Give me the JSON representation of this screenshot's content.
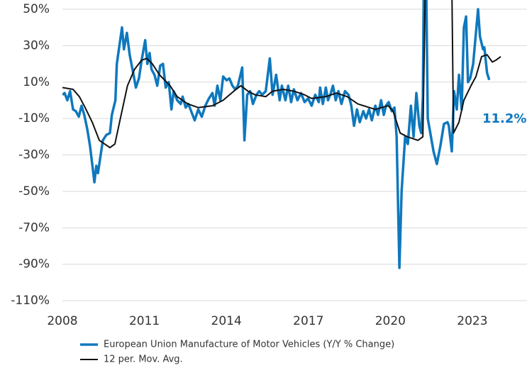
{
  "chart_data": {
    "type": "line",
    "annotation": "11.2%",
    "xlim": [
      2008,
      2025
    ],
    "xticks": [
      2008,
      2011,
      2014,
      2017,
      2020,
      2023
    ],
    "ylim": [
      -110,
      50
    ],
    "yticks": [
      {
        "value": 50,
        "label": "50%"
      },
      {
        "value": 30,
        "label": "30%"
      },
      {
        "value": 10,
        "label": "10%"
      },
      {
        "value": -10,
        "label": "-10%"
      },
      {
        "value": -30,
        "label": "-30%"
      },
      {
        "value": -50,
        "label": "-50%"
      },
      {
        "value": -70,
        "label": "-70%"
      },
      {
        "value": -90,
        "label": "-90%"
      },
      {
        "value": -110,
        "label": "-110%"
      }
    ],
    "grid": true,
    "series": [
      {
        "name": "European Union Manufacture of Motor Vehicles (Y/Y % Change)",
        "color": "#0f78bd",
        "width": 3.5,
        "x": [
          2008.0,
          2008.08,
          2008.18,
          2008.28,
          2008.39,
          2008.49,
          2008.6,
          2008.7,
          2008.8,
          2008.91,
          2009.01,
          2009.09,
          2009.17,
          2009.24,
          2009.3,
          2009.48,
          2009.61,
          2009.74,
          2009.81,
          2009.94,
          2009.99,
          2010.18,
          2010.25,
          2010.36,
          2010.46,
          2010.59,
          2010.69,
          2010.8,
          2010.9,
          2011.03,
          2011.11,
          2011.19,
          2011.26,
          2011.37,
          2011.47,
          2011.58,
          2011.68,
          2011.78,
          2011.89,
          2011.99,
          2012.07,
          2012.2,
          2012.33,
          2012.4,
          2012.51,
          2012.61,
          2012.84,
          2012.97,
          2013.1,
          2013.23,
          2013.36,
          2013.49,
          2013.57,
          2013.67,
          2013.78,
          2013.88,
          2014.01,
          2014.11,
          2014.22,
          2014.32,
          2014.42,
          2014.58,
          2014.66,
          2014.76,
          2014.87,
          2014.97,
          2015.1,
          2015.2,
          2015.31,
          2015.44,
          2015.59,
          2015.69,
          2015.82,
          2015.95,
          2016.03,
          2016.16,
          2016.26,
          2016.37,
          2016.47,
          2016.6,
          2016.73,
          2016.86,
          2016.99,
          2017.12,
          2017.25,
          2017.38,
          2017.43,
          2017.53,
          2017.64,
          2017.72,
          2017.82,
          2017.9,
          2018.0,
          2018.1,
          2018.21,
          2018.34,
          2018.47,
          2018.57,
          2018.67,
          2018.78,
          2018.88,
          2019.01,
          2019.11,
          2019.22,
          2019.32,
          2019.45,
          2019.55,
          2019.66,
          2019.76,
          2019.84,
          2019.94,
          2020.05,
          2020.15,
          2020.23,
          2020.33,
          2020.41,
          2020.54,
          2020.64,
          2020.75,
          2020.85,
          2020.95,
          2021.06,
          2021.13,
          2021.19,
          2021.26,
          2021.37,
          2021.58,
          2021.7,
          2021.83,
          2021.96,
          2022.09,
          2022.14,
          2022.25,
          2022.33,
          2022.43,
          2022.51,
          2022.61,
          2022.69,
          2022.77,
          2022.84,
          2022.92,
          2023.03,
          2023.21,
          2023.28,
          2023.39,
          2023.44,
          2023.54,
          2023.62
        ],
        "values": [
          3,
          4,
          0,
          5,
          -5,
          -6,
          -9,
          -3,
          -8,
          -16,
          -25,
          -35,
          -45,
          -36,
          -40,
          -22,
          -19,
          -18,
          -8,
          0,
          20,
          40,
          28,
          37,
          25,
          15,
          7,
          12,
          22,
          33,
          20,
          26,
          17,
          14,
          8,
          19,
          20,
          7,
          10,
          -5,
          5,
          0,
          -2,
          2,
          -4,
          -2,
          -11,
          -5,
          -9,
          -3,
          1,
          4,
          -3,
          8,
          0,
          13,
          11,
          12,
          8,
          6,
          8,
          18,
          -22,
          3,
          5,
          -2,
          3,
          5,
          3,
          5,
          23,
          3,
          14,
          0,
          8,
          0,
          8,
          -1,
          6,
          0,
          4,
          -1,
          1,
          -3,
          3,
          -1,
          7,
          -2,
          7,
          0,
          4,
          8,
          0,
          5,
          -2,
          5,
          3,
          -3,
          -14,
          -5,
          -12,
          -6,
          -10,
          -5,
          -11,
          -3,
          -8,
          0,
          -8,
          -3,
          -1,
          -6,
          -4,
          -20,
          -92,
          -50,
          -20,
          -24,
          -3,
          -20,
          4,
          -14,
          -18,
          2,
          130,
          -10,
          -28,
          -35,
          -25,
          -13,
          -12,
          -14,
          -28,
          5,
          -5,
          14,
          -5,
          40,
          46,
          10,
          12,
          20,
          50,
          35,
          28,
          29,
          15,
          11.2
        ]
      },
      {
        "name": "12 per. Mov. Avg.",
        "color": "#111111",
        "width": 2,
        "x": [
          2008.0,
          2008.39,
          2008.62,
          2008.83,
          2009.09,
          2009.35,
          2009.74,
          2009.92,
          2010.12,
          2010.38,
          2010.64,
          2010.9,
          2011.08,
          2011.29,
          2011.55,
          2011.94,
          2012.2,
          2012.59,
          2012.97,
          2013.49,
          2013.88,
          2014.27,
          2014.53,
          2014.79,
          2015.05,
          2015.44,
          2015.69,
          2016.08,
          2016.47,
          2016.86,
          2017.12,
          2017.64,
          2018.03,
          2018.42,
          2018.81,
          2019.45,
          2019.92,
          2020.1,
          2020.36,
          2020.62,
          2021.01,
          2021.19,
          2021.35,
          2022.2,
          2022.31,
          2022.51,
          2022.69,
          2022.95,
          2023.13,
          2023.34,
          2023.54,
          2023.73,
          2023.86,
          2024.04
        ],
        "values": [
          7,
          6,
          2,
          -4,
          -12,
          -22,
          -26,
          -24,
          -10,
          8,
          17,
          22,
          23,
          20,
          14,
          8,
          2,
          -2,
          -4,
          -3,
          0,
          5,
          8,
          5,
          3,
          2,
          5,
          6,
          5,
          3,
          1,
          2,
          4,
          2,
          -2,
          -5,
          -3,
          -6,
          -18,
          -20,
          -22,
          -20,
          130,
          130,
          -18,
          -12,
          0,
          8,
          13,
          24,
          25,
          21,
          22,
          24
        ]
      }
    ]
  }
}
